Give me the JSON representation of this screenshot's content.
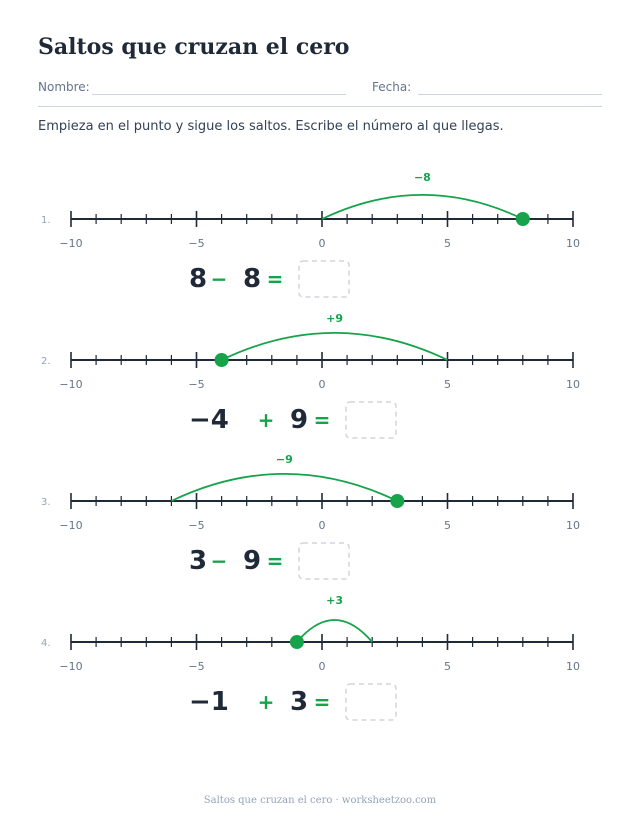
{
  "title": "Saltos que cruzan el cero",
  "name_label": "Nombre:",
  "date_label": "Fecha:",
  "instructions": "Empieza en el punto y sigue los saltos. Escribe el número al que llegas.",
  "footer": "Saltos que cruzan el cero · worksheetzoo.com",
  "axis": {
    "min": -10,
    "max": 10,
    "tick_labels": [
      "−10",
      "−5",
      "0",
      "5",
      "10"
    ],
    "tick_values": [
      -10,
      -5,
      0,
      5,
      10
    ]
  },
  "colors": {
    "accent": "#16a34a",
    "ink": "#1f2937",
    "muted": "#64748b",
    "box": "#d1d5db"
  },
  "problems": [
    {
      "number": "1.",
      "start": 8,
      "jump": -8,
      "jump_label": "−8",
      "expr_a": "8",
      "expr_op": "−",
      "expr_b": "8",
      "equals": "="
    },
    {
      "number": "2.",
      "start": -4,
      "jump": 9,
      "jump_label": "+9",
      "expr_a": "−4",
      "expr_op": "+",
      "expr_b": "9",
      "equals": "="
    },
    {
      "number": "3.",
      "start": 3,
      "jump": -9,
      "jump_label": "−9",
      "expr_a": "3",
      "expr_op": "−",
      "expr_b": "9",
      "equals": "="
    },
    {
      "number": "4.",
      "start": -1,
      "jump": 3,
      "jump_label": "+3",
      "expr_a": "−1",
      "expr_op": "+",
      "expr_b": "3",
      "equals": "="
    }
  ]
}
